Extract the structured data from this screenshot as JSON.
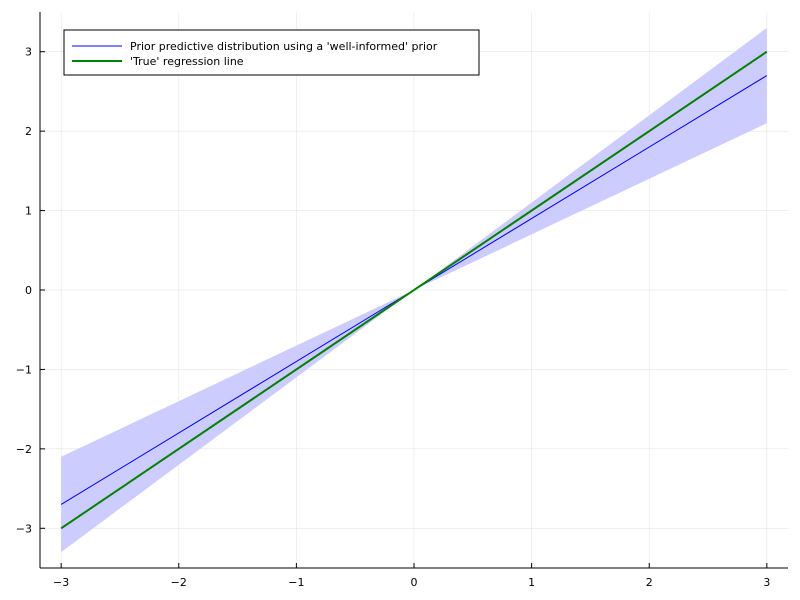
{
  "chart_data": {
    "type": "line",
    "xlim": [
      -3.18,
      3.18
    ],
    "ylim": [
      -3.5,
      3.5
    ],
    "xticks": [
      -3,
      -2,
      -1,
      0,
      1,
      2,
      3
    ],
    "xtick_labels": [
      "−3",
      "−2",
      "−1",
      "0",
      "1",
      "2",
      "3"
    ],
    "yticks": [
      -3,
      -2,
      -1,
      0,
      1,
      2,
      3
    ],
    "ytick_labels": [
      "−3",
      "−2",
      "−1",
      "0",
      "1",
      "2",
      "3"
    ],
    "grid": true,
    "legend_position": "top-left",
    "band": {
      "x": [
        -3,
        3
      ],
      "lower": [
        -3.3,
        2.1
      ],
      "upper": [
        -2.1,
        3.3
      ],
      "color": "#ccccff"
    },
    "series": [
      {
        "name": "Prior predictive distribution using a 'well-informed' prior",
        "x": [
          -3,
          3
        ],
        "y": [
          -2.7,
          2.7
        ],
        "color": "#0000ff",
        "width": 1
      },
      {
        "name": "'True' regression line",
        "x": [
          -3,
          3
        ],
        "y": [
          -3,
          3
        ],
        "color": "#008000",
        "width": 2
      }
    ]
  }
}
